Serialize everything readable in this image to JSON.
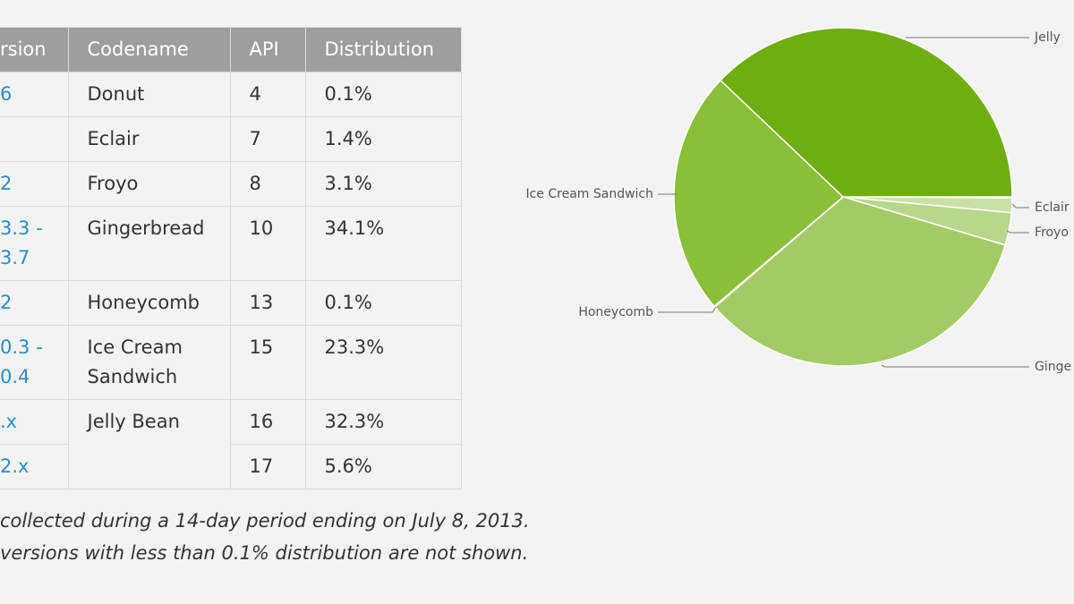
{
  "table": {
    "header": [
      "rsion",
      "Codename",
      "API",
      "Distribution"
    ],
    "rows": [
      {
        "version": [
          "6"
        ],
        "codename": "Donut",
        "api": 4,
        "distribution": "0.1%"
      },
      {
        "version": [],
        "codename": "Eclair",
        "api": 7,
        "distribution": "1.4%"
      },
      {
        "version": [
          "2"
        ],
        "codename": "Froyo",
        "api": 8,
        "distribution": "3.1%"
      },
      {
        "version": [
          "3.3 -",
          "3.7"
        ],
        "codename": "Gingerbread",
        "api": 10,
        "distribution": "34.1%"
      },
      {
        "version": [
          "2"
        ],
        "codename": "Honeycomb",
        "api": 13,
        "distribution": "0.1%"
      },
      {
        "version": [
          "0.3 -",
          "0.4"
        ],
        "codename": "Ice Cream Sandwich",
        "api": 15,
        "distribution": "23.3%"
      },
      {
        "version": [
          ".x"
        ],
        "codename": "Jelly Bean",
        "api": 16,
        "distribution": "32.3%"
      },
      {
        "version": [
          "2.x"
        ],
        "api": 17,
        "distribution": "5.6%"
      }
    ]
  },
  "footnotes": [
    "collected during a 14-day period ending on July 8, 2013.",
    "versions with less than 0.1% distribution are not shown."
  ],
  "chart_data": {
    "type": "pie",
    "categories": [
      null,
      "Eclair",
      "Froyo",
      "Ginge",
      "Honeycomb",
      "Ice Cream Sandwich",
      "Jelly"
    ],
    "values": [
      0.1,
      1.4,
      3.1,
      34.1,
      0.1,
      23.3,
      37.9
    ],
    "colors": [
      "#d8e9c2",
      "#c9e1a7",
      "#b7d78a",
      "#a3cb65",
      "#98c44f",
      "#8abf38",
      "#6fae10"
    ]
  }
}
